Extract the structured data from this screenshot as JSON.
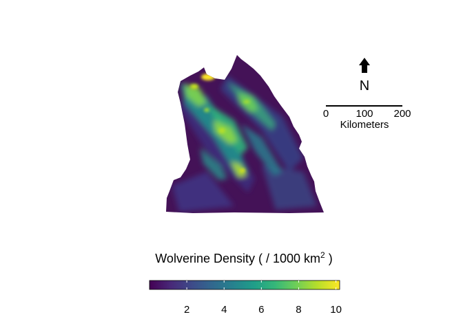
{
  "north_arrow": {
    "label": "N",
    "icon": "north-arrow-icon"
  },
  "scale_bar": {
    "ticks": [
      "0",
      "100",
      "200"
    ],
    "unit_label": "Kilometers"
  },
  "legend": {
    "title_main": "Wolverine Density ( / 1000 km",
    "title_sup": "2",
    "title_end": " )",
    "colorscale": "viridis",
    "range": [
      0,
      10.2
    ],
    "ticks": [
      "2",
      "4",
      "6",
      "8",
      "10"
    ],
    "tick_values": [
      2,
      4,
      6,
      8,
      10
    ]
  },
  "colors": {
    "viridis": [
      "#440154",
      "#482878",
      "#3e4a89",
      "#31688e",
      "#26828e",
      "#1f9e89",
      "#35b779",
      "#6ece58",
      "#b5de2b",
      "#fde725"
    ],
    "background": "#ffffff"
  }
}
